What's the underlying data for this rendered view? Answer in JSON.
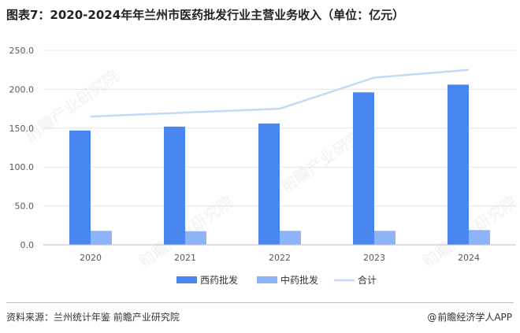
{
  "title": "图表7：2020-2024年年兰州市医药批发行业主营业务收入（单位：亿元）",
  "footer": {
    "source": "资料来源：兰州统计年鉴 前瞻产业研究院",
    "attribution_icon": "@",
    "attribution": "前瞻经济学人APP"
  },
  "watermark": "前瞻产业研究院",
  "colors": {
    "western": "#4a86f0",
    "chinese": "#8db4f7",
    "total": "#c5d8f8",
    "grid": "#e4e4e4",
    "axis": "#bfbfbf",
    "text": "#595959"
  },
  "chart_data": {
    "type": "bar",
    "categories": [
      "2020",
      "2021",
      "2022",
      "2023",
      "2024"
    ],
    "ylim": [
      0,
      250
    ],
    "yticks": [
      "0.0",
      "50.0",
      "100.0",
      "150.0",
      "200.0",
      "250.0"
    ],
    "grid": true,
    "legend_position": "bottom",
    "series": [
      {
        "name": "西药批发",
        "type": "bar",
        "values": [
          147,
          152,
          156,
          196,
          206
        ]
      },
      {
        "name": "中药批发",
        "type": "bar",
        "values": [
          18,
          17.5,
          18,
          18,
          19
        ]
      },
      {
        "name": "合计",
        "type": "line",
        "values": [
          165,
          170,
          175,
          215,
          225
        ]
      }
    ]
  }
}
